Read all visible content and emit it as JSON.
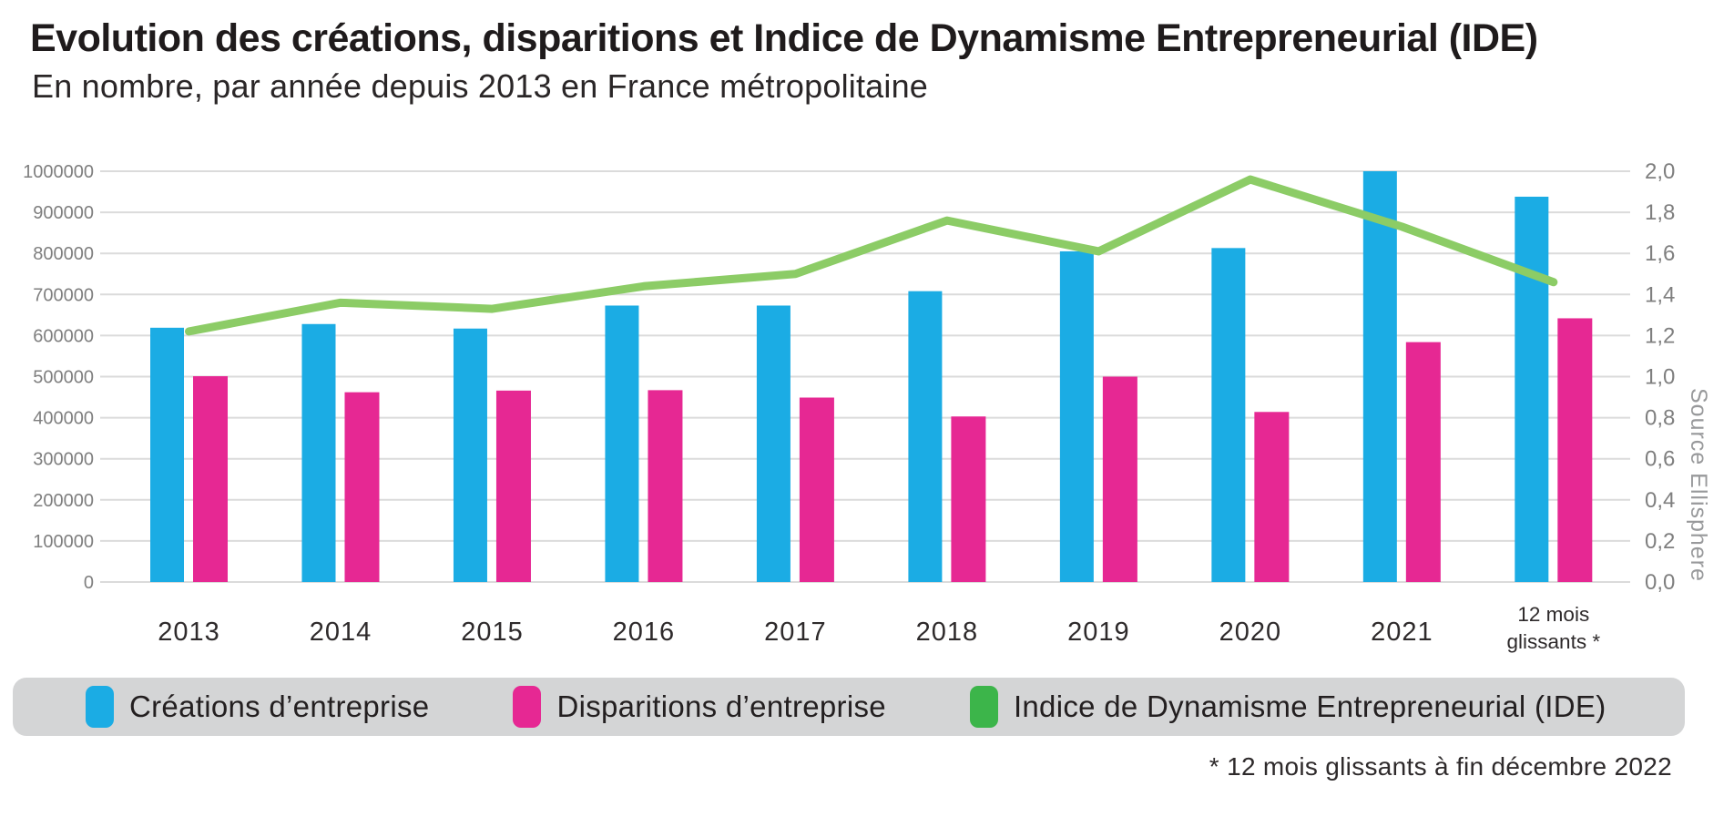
{
  "header": {
    "title": "Evolution des créations, disparitions et Indice de Dynamisme Entrepreneurial (IDE)",
    "subtitle": "En nombre, par année depuis 2013 en France métropolitaine"
  },
  "source_label": "Source Ellisphere",
  "footnote": "* 12 mois glissants à fin décembre 2022",
  "colors": {
    "creations_blue": "#1BACE4",
    "disparitions_pink": "#E62893",
    "ide_line_green": "#8CCC66",
    "ide_legend_green": "#3CB54A",
    "legend_background": "#D4D5D6",
    "gridline": "#DBDBDB",
    "axis_text": "#7F7F7F",
    "dark_text": "#231F20"
  },
  "legend": {
    "items": [
      {
        "label": "Créations d’entreprise",
        "color": "#1BACE4"
      },
      {
        "label": "Disparitions d’entreprise",
        "color": "#E62893"
      },
      {
        "label": "Indice de Dynamisme Entrepreneurial (IDE)",
        "color": "#3CB54A"
      }
    ]
  },
  "chart_data": {
    "type": "bar",
    "title": "Evolution des créations, disparitions et Indice de Dynamisme Entrepreneurial (IDE)",
    "subtitle": "En nombre, par année depuis 2013 en France métropolitaine",
    "categories": [
      "2013",
      "2014",
      "2015",
      "2016",
      "2017",
      "2018",
      "2019",
      "2020",
      "2021",
      "12 mois\nglissants *"
    ],
    "series": [
      {
        "name": "Créations d’entreprise",
        "type": "bar",
        "axis": "left",
        "color": "#1BACE4",
        "values": [
          619000,
          628000,
          617000,
          673000,
          673000,
          708000,
          805000,
          813000,
          1000000,
          938000
        ]
      },
      {
        "name": "Disparitions d’entreprise",
        "type": "bar",
        "axis": "left",
        "color": "#E62893",
        "values": [
          501000,
          462000,
          466000,
          467000,
          449000,
          403000,
          500000,
          414000,
          584000,
          642000
        ]
      },
      {
        "name": "Indice de Dynamisme Entrepreneurial (IDE)",
        "type": "line",
        "axis": "right",
        "color": "#8CCC66",
        "values": [
          1.22,
          1.36,
          1.33,
          1.44,
          1.5,
          1.76,
          1.61,
          1.96,
          1.73,
          1.46
        ]
      }
    ],
    "left_axis": {
      "range": [
        0,
        1000000
      ],
      "ticks": [
        "1000000",
        "900000",
        "800000",
        "700000",
        "600000",
        "500000",
        "400000",
        "300000",
        "200000",
        "100000",
        "0"
      ]
    },
    "right_axis": {
      "range": [
        0,
        2
      ],
      "ticks": [
        "2,0",
        "1,8",
        "1,6",
        "1,4",
        "1,2",
        "1,0",
        "0,8",
        "0,6",
        "0,4",
        "0,2",
        "0,0"
      ]
    },
    "grid": true,
    "legend_position": "bottom"
  }
}
